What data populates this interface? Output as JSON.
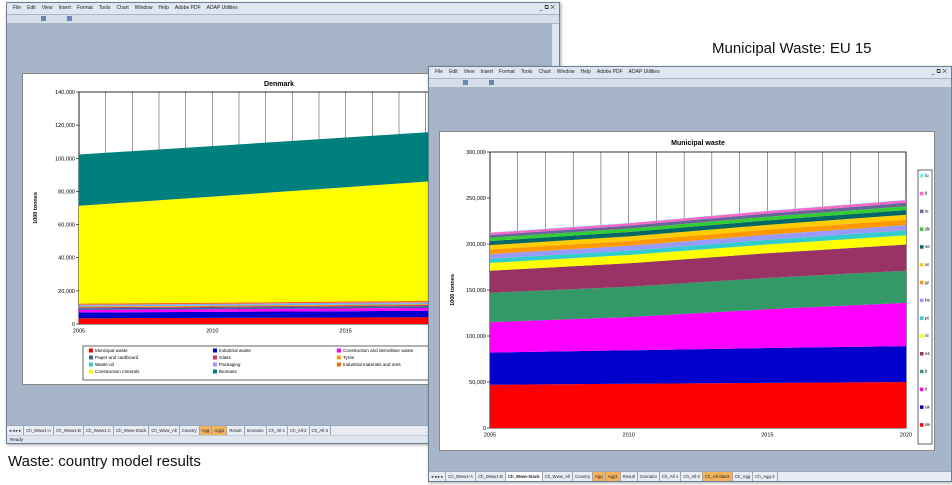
{
  "captions": {
    "eu15": "Municipal Waste: EU 15",
    "country": "Waste: country model results"
  },
  "window1": {
    "menu": [
      "File",
      "Edit",
      "View",
      "Insert",
      "Format",
      "Tools",
      "Chart",
      "Window",
      "Help",
      "Adobe PDF",
      "ADAP Utilities"
    ],
    "controls": "_ ⧉ ✕",
    "tabs": [
      "Ch_Www1-A",
      "Ch_Www1-B",
      "Ch_Www1-C",
      "Ch_Www-Stack",
      "Ch_Www_All",
      "Country",
      "Agg",
      "Agg1",
      "Result",
      "Scenario",
      "Ch_All-1",
      "Ch_All-2",
      "Ch_All-3"
    ],
    "status": "Ready",
    "chart_data": {
      "type": "area",
      "title": "Denmark",
      "xlabel": "",
      "ylabel": "1000 tonnes",
      "x_ticks": [
        "2005",
        "2010",
        "2015"
      ],
      "y_ticks": [
        "0",
        "20,000",
        "40,000",
        "60,000",
        "80,000",
        "100,000",
        "120,000",
        "140,000"
      ],
      "ylim": [
        0,
        140000
      ],
      "xlim": [
        2005,
        2020
      ],
      "x": [
        2005,
        2010,
        2015,
        2020
      ],
      "stacked": true,
      "grid": true,
      "legend_position": "bottom",
      "series": [
        {
          "name": "Municipal waste",
          "color": "#ff0000",
          "values": [
            3500,
            3700,
            3900,
            4100
          ]
        },
        {
          "name": "Industrial waste",
          "color": "#0000cc",
          "values": [
            3500,
            3600,
            3800,
            4000
          ]
        },
        {
          "name": "Construction and demolition waste",
          "color": "#ff00ff",
          "values": [
            1500,
            1600,
            1700,
            1800
          ]
        },
        {
          "name": "Paper and cardboard",
          "color": "#336699",
          "values": [
            1000,
            1050,
            1100,
            1150
          ]
        },
        {
          "name": "Glass",
          "color": "#cc3366",
          "values": [
            600,
            620,
            640,
            660
          ]
        },
        {
          "name": "Tyres",
          "color": "#ff9900",
          "values": [
            400,
            420,
            440,
            460
          ]
        },
        {
          "name": "Waste oil",
          "color": "#33cccc",
          "values": [
            400,
            420,
            440,
            460
          ]
        },
        {
          "name": "Packaging",
          "color": "#9999ff",
          "values": [
            700,
            730,
            760,
            790
          ]
        },
        {
          "name": "Industrial materials and ores",
          "color": "#ff6600",
          "values": [
            700,
            740,
            780,
            820
          ]
        },
        {
          "name": "Construction minerals",
          "color": "#ffff00",
          "values": [
            59000,
            64000,
            69000,
            74000
          ]
        },
        {
          "name": "Biomass",
          "color": "#007f7f",
          "values": [
            31000,
            30500,
            30000,
            29500
          ]
        }
      ]
    }
  },
  "window2": {
    "menu": [
      "File",
      "Edit",
      "View",
      "Insert",
      "Format",
      "Tools",
      "Chart",
      "Window",
      "Help",
      "Adobe PDF",
      "ADAP Utilities"
    ],
    "controls": "_ ⧉ ✕",
    "tabs": [
      "Ch_Www1-A",
      "Ch_Www1-B",
      "Ch_Www-Stack",
      "Ch_Www_All",
      "Country",
      "Agg",
      "Agg1",
      "Result",
      "Scenario",
      "Ch_All-1",
      "Ch_All-2",
      "Ch_All-Stack",
      "Ch_Agg",
      "Ch_Agg-2"
    ],
    "chart_data": {
      "type": "area",
      "title": "Municipal waste",
      "xlabel": "",
      "ylabel": "1000 tonnes",
      "x_ticks": [
        "2005",
        "2010",
        "2015",
        "2020"
      ],
      "y_ticks": [
        "0",
        "50,000",
        "100,000",
        "150,000",
        "200,000",
        "250,000",
        "300,000"
      ],
      "ylim": [
        0,
        300000
      ],
      "xlim": [
        2005,
        2020
      ],
      "x": [
        2005,
        2010,
        2015,
        2020
      ],
      "stacked": true,
      "grid": true,
      "legend_position": "right",
      "series": [
        {
          "name": "de",
          "color": "#ff0000",
          "values": [
            47000,
            48000,
            49000,
            50000
          ]
        },
        {
          "name": "uk",
          "color": "#0000cc",
          "values": [
            35000,
            36500,
            38000,
            39000
          ]
        },
        {
          "name": "it",
          "color": "#ff00ff",
          "values": [
            33000,
            36000,
            42000,
            47000
          ]
        },
        {
          "name": "fr",
          "color": "#339966",
          "values": [
            32000,
            33000,
            34000,
            35000
          ]
        },
        {
          "name": "es",
          "color": "#993366",
          "values": [
            24000,
            25500,
            27000,
            28500
          ]
        },
        {
          "name": "nl",
          "color": "#ffff00",
          "values": [
            8500,
            9000,
            9500,
            10000
          ]
        },
        {
          "name": "pt",
          "color": "#33cccc",
          "values": [
            4500,
            4800,
            5100,
            5400
          ]
        },
        {
          "name": "be",
          "color": "#9999ff",
          "values": [
            5000,
            5200,
            5400,
            5600
          ]
        },
        {
          "name": "gr",
          "color": "#ff9900",
          "values": [
            5000,
            5300,
            5600,
            5900
          ]
        },
        {
          "name": "at",
          "color": "#ffcc00",
          "values": [
            4800,
            5000,
            5200,
            5400
          ]
        },
        {
          "name": "se",
          "color": "#006666",
          "values": [
            4500,
            4700,
            4900,
            5100
          ]
        },
        {
          "name": "dk",
          "color": "#33cc33",
          "values": [
            3500,
            3700,
            3900,
            4100
          ]
        },
        {
          "name": "ie",
          "color": "#666699",
          "values": [
            3000,
            3300,
            3600,
            3900
          ]
        },
        {
          "name": "fi",
          "color": "#ff66cc",
          "values": [
            2500,
            2600,
            2700,
            2800
          ]
        },
        {
          "name": "lu",
          "color": "#66ffff",
          "values": [
            300,
            320,
            340,
            360
          ]
        }
      ]
    }
  }
}
